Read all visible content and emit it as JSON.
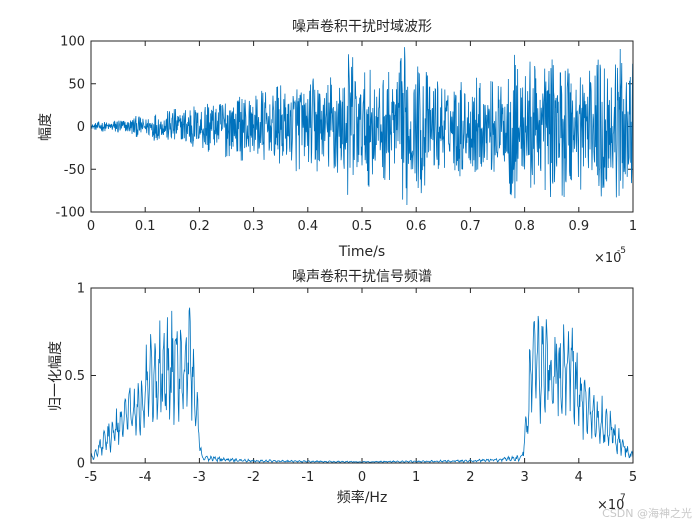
{
  "chart_data": [
    {
      "type": "line",
      "title": "噪声卷积干扰时域波形",
      "xlabel": "Time/s",
      "ylabel": "幅度",
      "x_exponent_label": "×10",
      "x_exponent": "-5",
      "xlim": [
        0,
        1
      ],
      "ylim": [
        -100,
        100
      ],
      "xticks": [
        "0",
        "0.1",
        "0.2",
        "0.3",
        "0.4",
        "0.5",
        "0.6",
        "0.7",
        "0.8",
        "0.9",
        "1"
      ],
      "yticks": [
        "-100",
        "-50",
        "0",
        "50",
        "100"
      ],
      "color": "#0072bd",
      "grid": false,
      "envelope": {
        "x": [
          0,
          0.03,
          0.06,
          0.1,
          0.15,
          0.2,
          0.25,
          0.3,
          0.35,
          0.4,
          0.45,
          0.48,
          0.5,
          0.55,
          0.58,
          0.6,
          0.65,
          0.7,
          0.75,
          0.78,
          0.8,
          0.85,
          0.88,
          0.9,
          0.95,
          1.0
        ],
        "y": [
          4,
          7,
          10,
          14,
          22,
          32,
          38,
          44,
          50,
          57,
          68,
          95,
          72,
          66,
          98,
          88,
          55,
          62,
          58,
          92,
          80,
          88,
          92,
          80,
          95,
          88
        ]
      },
      "samples": 1400
    },
    {
      "type": "line",
      "title": "噪声卷积干扰信号频谱",
      "xlabel": "频率/Hz",
      "ylabel": "归一化幅度",
      "x_exponent_label": "×10",
      "x_exponent": "7",
      "xlim": [
        -5,
        5
      ],
      "ylim": [
        0,
        1
      ],
      "xticks": [
        "-5",
        "-4",
        "-3",
        "-2",
        "-1",
        "0",
        "1",
        "2",
        "3",
        "4",
        "5"
      ],
      "yticks": [
        "0",
        "0.5",
        "1"
      ],
      "color": "#0072bd",
      "grid": false,
      "envelope": {
        "x": [
          -5,
          -4.9,
          -4.6,
          -4.3,
          -4.1,
          -3.9,
          -3.7,
          -3.5,
          -3.3,
          -3.15,
          -3.05,
          -2.95,
          -2.5,
          -2,
          0,
          2,
          2.5,
          2.95,
          3.05,
          3.15,
          3.3,
          3.5,
          3.7,
          3.9,
          4.1,
          4.3,
          4.6,
          4.9,
          5
        ],
        "y": [
          0.06,
          0.1,
          0.3,
          0.45,
          0.55,
          0.82,
          0.85,
          0.9,
          0.88,
          1.0,
          0.5,
          0.05,
          0.03,
          0.02,
          0.01,
          0.02,
          0.03,
          0.05,
          0.5,
          1.0,
          0.88,
          0.9,
          0.85,
          0.82,
          0.55,
          0.45,
          0.3,
          0.1,
          0.06
        ]
      },
      "samples": 1000
    }
  ],
  "watermark": "CSDN @海神之光"
}
